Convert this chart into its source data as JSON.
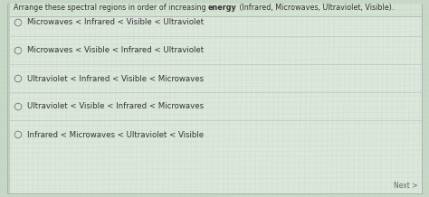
{
  "title_pre": "Arrange these spectral regions in order of increasing ",
  "title_bold": "energy",
  "title_post": " (Infrared, Microwaves, Ultraviolet, Visible).",
  "options": [
    "Microwaves < Infrared < Visible < Ultraviolet",
    "Microwaves < Visible < Infrared < Ultraviolet",
    "Ultraviolet < Infrared < Visible < Microwaves",
    "Ultraviolet < Visible < Infrared < Microwaves",
    "Infrared < Microwaves < Ultraviolet < Visible"
  ],
  "bg_color": "#c8d8c8",
  "panel_color": "#dde8dd",
  "text_color": "#333333",
  "circle_color": "#777777",
  "title_fontsize": 5.8,
  "option_fontsize": 6.2,
  "next_fontsize": 5.5,
  "figwidth": 4.74,
  "figheight": 2.18,
  "dpi": 100,
  "next_label": "Next >"
}
